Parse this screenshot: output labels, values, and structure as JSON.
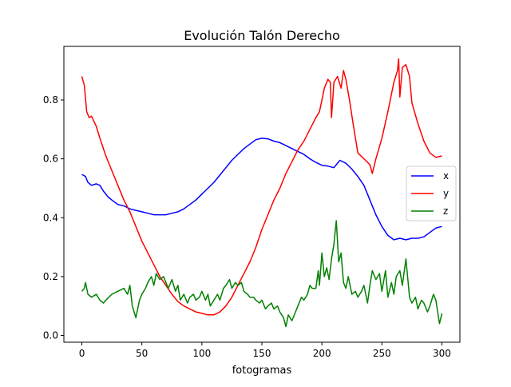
{
  "chart_data": {
    "type": "line",
    "title": "Evolución Talón Derecho",
    "xlabel": "fotogramas",
    "ylabel": "",
    "xlim": [
      -15,
      315
    ],
    "ylim": [
      -0.023,
      0.982
    ],
    "xticks": [
      0,
      50,
      100,
      150,
      200,
      250,
      300
    ],
    "yticks": [
      0.0,
      0.2,
      0.4,
      0.6,
      0.8
    ],
    "ytick_labels": [
      "0.0",
      "0.2",
      "0.4",
      "0.6",
      "0.8"
    ],
    "grid": false,
    "legend_position": "center-right",
    "series": [
      {
        "name": "x",
        "color": "#0000ff",
        "x": [
          0,
          3,
          5,
          8,
          12,
          15,
          18,
          22,
          25,
          30,
          35,
          40,
          45,
          50,
          55,
          60,
          65,
          70,
          75,
          80,
          85,
          90,
          95,
          100,
          105,
          110,
          115,
          120,
          125,
          130,
          135,
          140,
          145,
          150,
          155,
          160,
          165,
          170,
          175,
          180,
          185,
          190,
          195,
          200,
          205,
          210,
          215,
          220,
          225,
          230,
          235,
          240,
          245,
          250,
          255,
          260,
          265,
          270,
          275,
          280,
          285,
          290,
          295,
          300
        ],
        "y": [
          0.547,
          0.54,
          0.52,
          0.51,
          0.515,
          0.51,
          0.49,
          0.47,
          0.46,
          0.445,
          0.44,
          0.43,
          0.425,
          0.42,
          0.415,
          0.41,
          0.41,
          0.41,
          0.415,
          0.42,
          0.43,
          0.445,
          0.46,
          0.48,
          0.5,
          0.52,
          0.545,
          0.57,
          0.595,
          0.615,
          0.635,
          0.65,
          0.665,
          0.67,
          0.668,
          0.66,
          0.655,
          0.645,
          0.635,
          0.625,
          0.615,
          0.6,
          0.588,
          0.578,
          0.575,
          0.57,
          0.595,
          0.585,
          0.565,
          0.54,
          0.51,
          0.46,
          0.41,
          0.37,
          0.34,
          0.325,
          0.33,
          0.325,
          0.33,
          0.33,
          0.335,
          0.35,
          0.365,
          0.37
        ]
      },
      {
        "name": "y",
        "color": "#ff0000",
        "x": [
          0,
          2,
          4,
          6,
          8,
          12,
          15,
          20,
          25,
          30,
          35,
          40,
          45,
          50,
          55,
          60,
          65,
          70,
          75,
          80,
          85,
          90,
          95,
          100,
          105,
          110,
          115,
          120,
          125,
          130,
          135,
          140,
          145,
          150,
          155,
          160,
          165,
          170,
          175,
          180,
          185,
          190,
          195,
          198,
          200,
          202,
          205,
          207,
          208,
          210,
          213,
          216,
          218,
          220,
          223,
          226,
          230,
          235,
          240,
          242,
          245,
          250,
          255,
          260,
          263,
          264,
          265,
          267,
          270,
          273,
          275,
          280,
          285,
          290,
          295,
          300
        ],
        "y": [
          0.88,
          0.85,
          0.76,
          0.74,
          0.745,
          0.71,
          0.67,
          0.61,
          0.56,
          0.51,
          0.46,
          0.42,
          0.37,
          0.32,
          0.28,
          0.24,
          0.2,
          0.17,
          0.14,
          0.115,
          0.1,
          0.09,
          0.08,
          0.075,
          0.07,
          0.07,
          0.08,
          0.1,
          0.13,
          0.17,
          0.21,
          0.25,
          0.3,
          0.36,
          0.41,
          0.46,
          0.5,
          0.55,
          0.59,
          0.63,
          0.66,
          0.7,
          0.74,
          0.76,
          0.8,
          0.84,
          0.87,
          0.86,
          0.74,
          0.86,
          0.88,
          0.84,
          0.9,
          0.87,
          0.8,
          0.72,
          0.62,
          0.6,
          0.58,
          0.55,
          0.6,
          0.67,
          0.76,
          0.86,
          0.9,
          0.94,
          0.81,
          0.91,
          0.92,
          0.88,
          0.79,
          0.72,
          0.66,
          0.62,
          0.605,
          0.61
        ]
      },
      {
        "name": "z",
        "color": "#008000",
        "x": [
          0,
          2,
          3,
          5,
          8,
          12,
          15,
          18,
          20,
          25,
          30,
          35,
          38,
          40,
          42,
          45,
          48,
          50,
          53,
          55,
          58,
          60,
          62,
          65,
          68,
          70,
          72,
          75,
          78,
          80,
          82,
          85,
          88,
          90,
          93,
          95,
          98,
          100,
          103,
          105,
          107,
          110,
          113,
          115,
          118,
          120,
          123,
          125,
          128,
          130,
          133,
          135,
          138,
          140,
          143,
          145,
          148,
          150,
          153,
          155,
          158,
          160,
          163,
          165,
          168,
          170,
          172,
          175,
          178,
          180,
          183,
          185,
          188,
          190,
          192,
          195,
          197,
          198,
          200,
          202,
          204,
          206,
          208,
          210,
          212,
          214,
          216,
          218,
          220,
          222,
          225,
          228,
          230,
          233,
          235,
          238,
          240,
          242,
          245,
          248,
          250,
          253,
          255,
          258,
          260,
          262,
          265,
          267,
          270,
          273,
          275,
          278,
          280,
          283,
          285,
          288,
          290,
          293,
          295,
          298,
          300
        ],
        "y": [
          0.15,
          0.16,
          0.18,
          0.14,
          0.13,
          0.14,
          0.12,
          0.11,
          0.12,
          0.14,
          0.15,
          0.16,
          0.14,
          0.17,
          0.1,
          0.06,
          0.12,
          0.14,
          0.16,
          0.18,
          0.2,
          0.17,
          0.21,
          0.19,
          0.2,
          0.18,
          0.16,
          0.19,
          0.15,
          0.17,
          0.12,
          0.14,
          0.11,
          0.13,
          0.14,
          0.12,
          0.13,
          0.15,
          0.12,
          0.14,
          0.1,
          0.12,
          0.14,
          0.12,
          0.16,
          0.17,
          0.19,
          0.16,
          0.18,
          0.17,
          0.18,
          0.15,
          0.14,
          0.13,
          0.13,
          0.12,
          0.11,
          0.12,
          0.09,
          0.1,
          0.11,
          0.09,
          0.1,
          0.08,
          0.06,
          0.03,
          0.07,
          0.05,
          0.08,
          0.1,
          0.13,
          0.12,
          0.14,
          0.17,
          0.16,
          0.16,
          0.22,
          0.17,
          0.28,
          0.2,
          0.23,
          0.19,
          0.26,
          0.31,
          0.39,
          0.25,
          0.28,
          0.18,
          0.16,
          0.2,
          0.14,
          0.15,
          0.13,
          0.15,
          0.17,
          0.11,
          0.17,
          0.22,
          0.19,
          0.21,
          0.15,
          0.22,
          0.13,
          0.18,
          0.14,
          0.2,
          0.22,
          0.17,
          0.26,
          0.13,
          0.11,
          0.13,
          0.09,
          0.12,
          0.11,
          0.08,
          0.1,
          0.14,
          0.12,
          0.04,
          0.075
        ]
      }
    ]
  }
}
